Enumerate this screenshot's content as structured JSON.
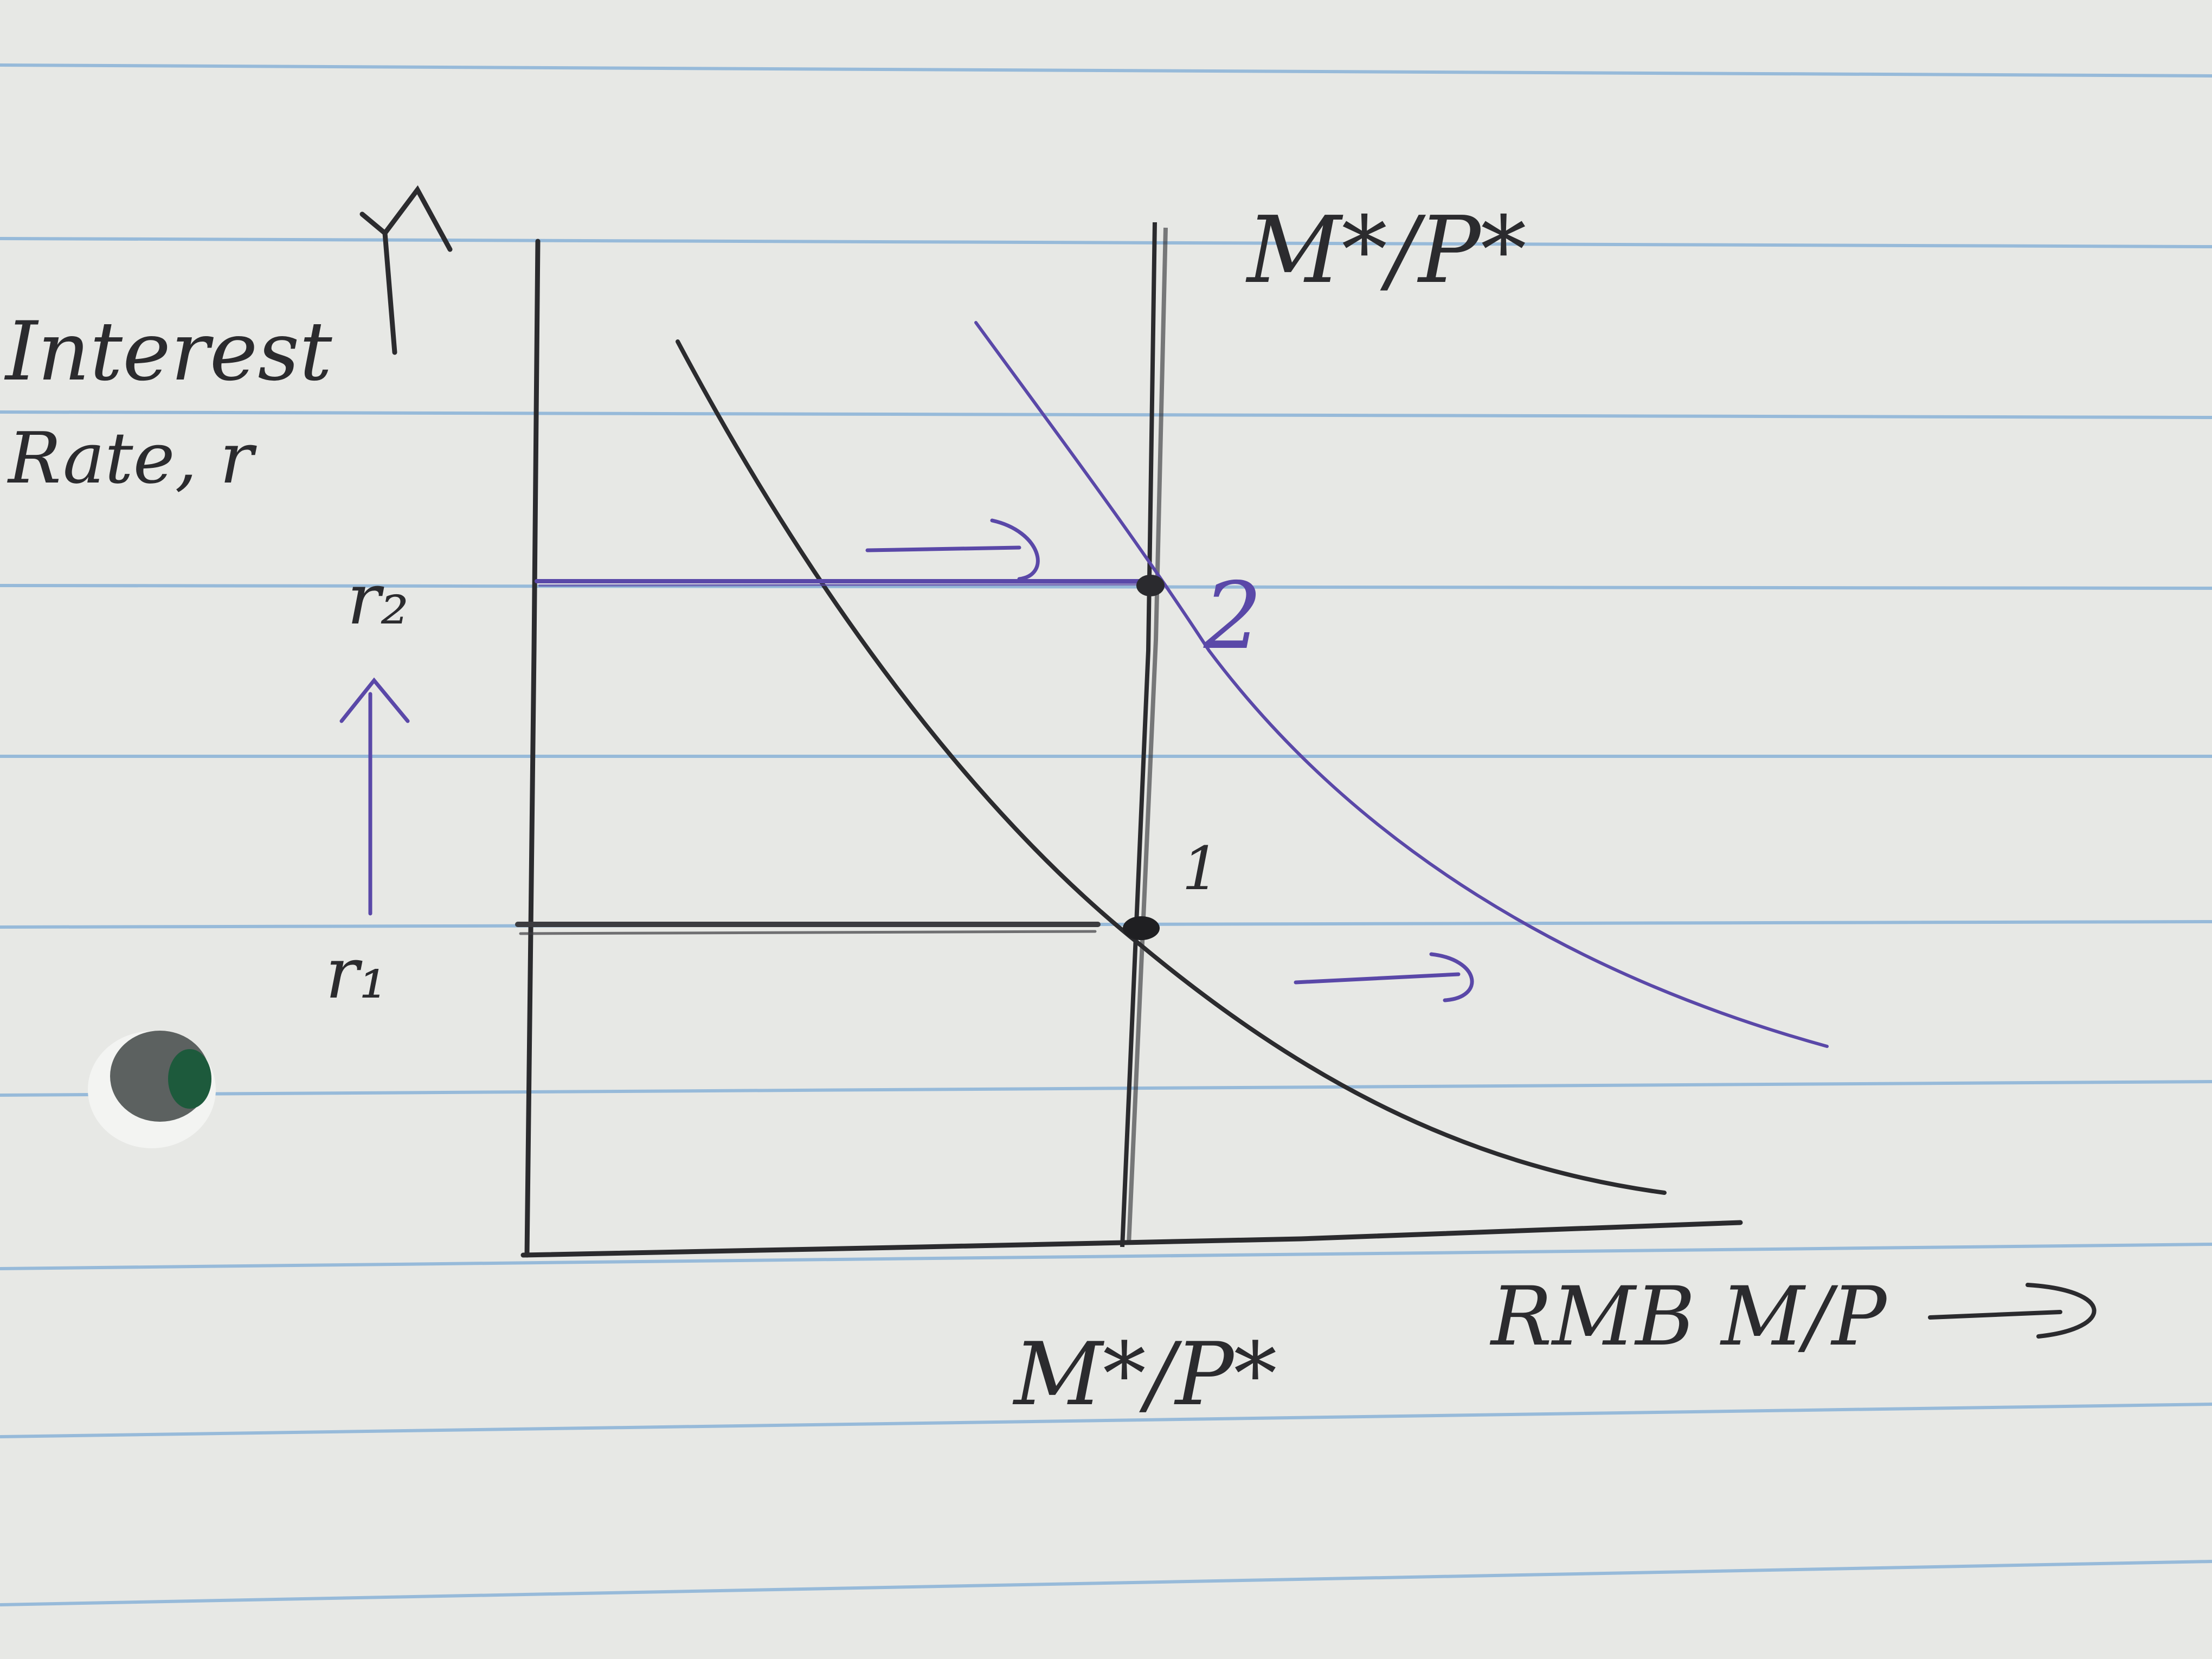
{
  "colors": {
    "paper": "#e7e8e5",
    "rule_line": "#8fb6d8",
    "pencil": "#2b2b2e",
    "purple_ink": "#5a48a8",
    "hole": "#5c6160"
  },
  "labels": {
    "y_axis_line1": "Interest",
    "y_axis_line2": "Rate, r",
    "r2": "r₂",
    "r1": "r₁",
    "supply_label_top": "M*/P*",
    "supply_label_bottom": "M*/P*",
    "x_axis": "RMB M/P",
    "point_1": "1",
    "point_2": "2"
  }
}
